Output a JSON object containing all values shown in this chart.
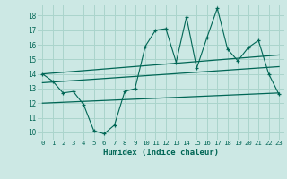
{
  "xlabel": "Humidex (Indice chaleur)",
  "background_color": "#cce8e4",
  "grid_color": "#aad4cc",
  "line_color": "#006655",
  "xlim": [
    -0.5,
    23.5
  ],
  "ylim": [
    9.5,
    18.7
  ],
  "yticks": [
    10,
    11,
    12,
    13,
    14,
    15,
    16,
    17,
    18
  ],
  "xticks": [
    0,
    1,
    2,
    3,
    4,
    5,
    6,
    7,
    8,
    9,
    10,
    11,
    12,
    13,
    14,
    15,
    16,
    17,
    18,
    19,
    20,
    21,
    22,
    23
  ],
  "main_line_x": [
    0,
    1,
    2,
    3,
    4,
    5,
    6,
    7,
    8,
    9,
    10,
    11,
    12,
    13,
    14,
    15,
    16,
    17,
    18,
    19,
    20,
    21,
    22,
    23
  ],
  "main_line_y": [
    14.0,
    13.5,
    12.7,
    12.8,
    11.9,
    10.1,
    9.9,
    10.5,
    12.8,
    13.0,
    15.9,
    17.0,
    17.1,
    14.8,
    17.9,
    14.4,
    16.5,
    18.5,
    15.7,
    14.9,
    15.8,
    16.3,
    14.0,
    12.6
  ],
  "upper_line_x": [
    0,
    23
  ],
  "upper_line_y": [
    14.0,
    15.3
  ],
  "middle_line_x": [
    0,
    23
  ],
  "middle_line_y": [
    13.4,
    14.5
  ],
  "lower_line_x": [
    0,
    23
  ],
  "lower_line_y": [
    12.0,
    12.7
  ]
}
